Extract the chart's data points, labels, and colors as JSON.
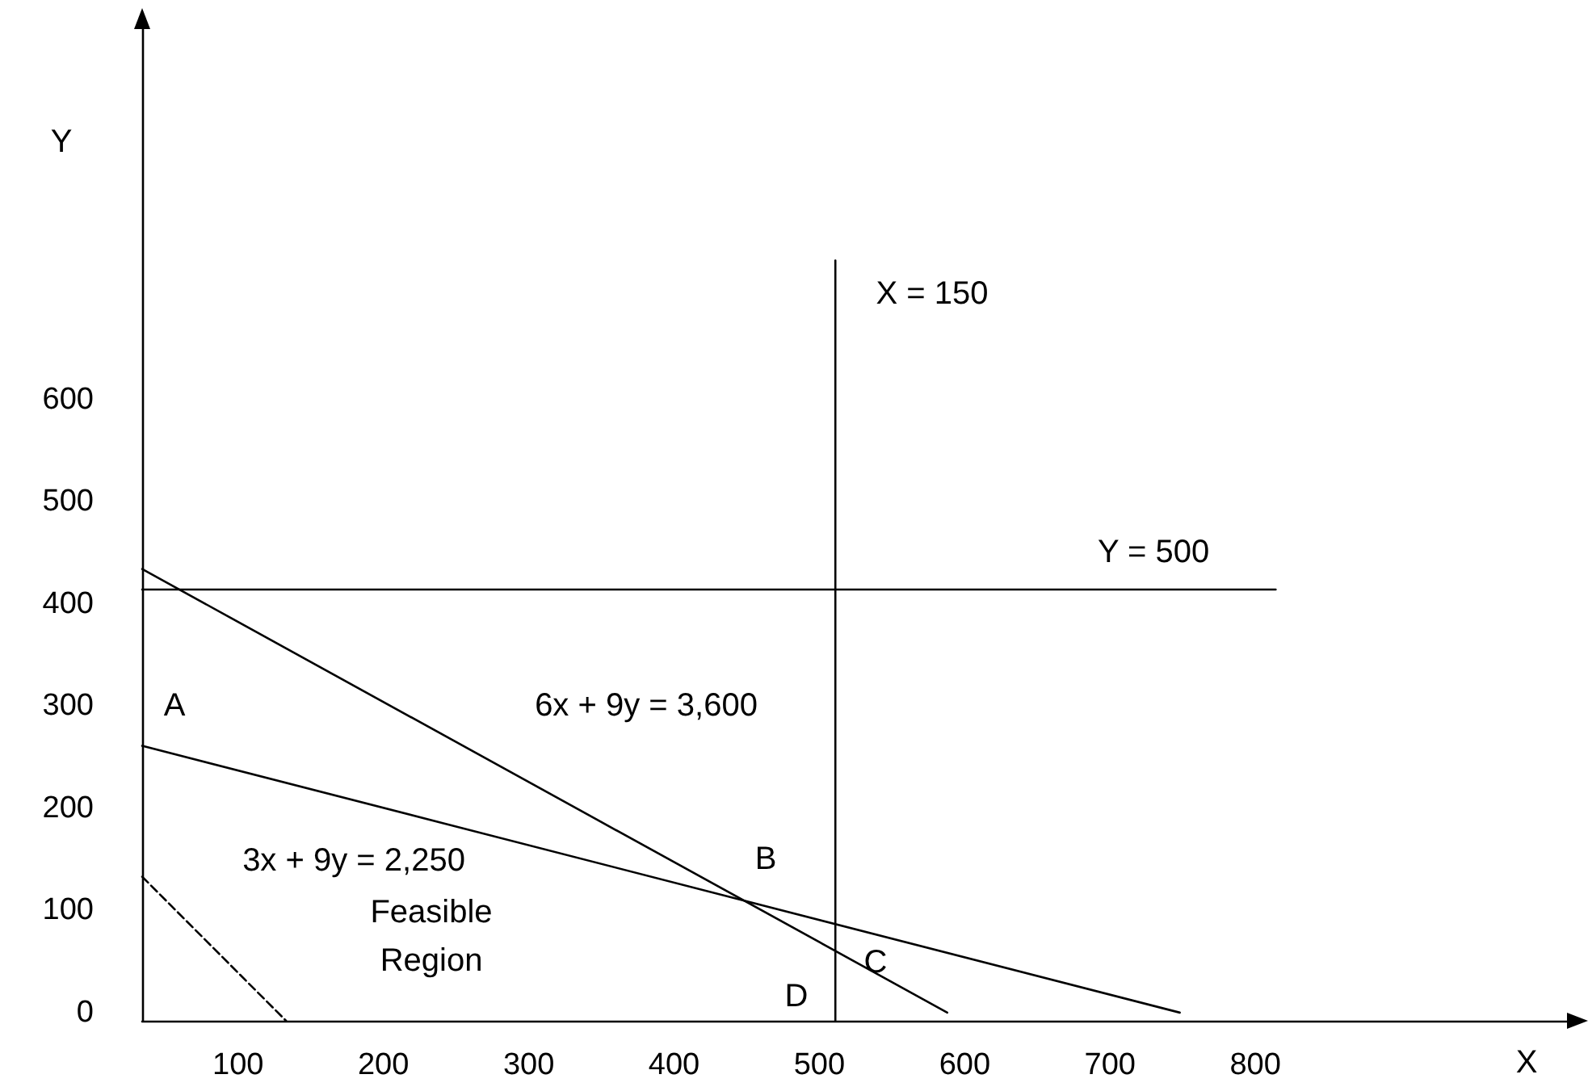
{
  "chart_data": {
    "type": "line",
    "xlabel": "X",
    "ylabel": "Y",
    "xlim": [
      34,
      1020
    ],
    "ylim": [
      -8,
      975
    ],
    "xticks": [
      100,
      200,
      300,
      400,
      500,
      600,
      700,
      800
    ],
    "yticks": [
      0,
      100,
      200,
      300,
      400,
      500,
      600
    ],
    "grid": false,
    "marker": "none",
    "series": [
      {
        "color": "#000000",
        "x": [
          34,
          588
        ],
        "values": [
          434,
          0
        ]
      },
      {
        "color": "#000000",
        "x": [
          34,
          748
        ],
        "values": [
          261,
          0
        ]
      },
      {
        "color": "#000000",
        "x": [
          34,
          814
        ],
        "values": [
          414,
          414
        ]
      },
      {
        "color": "#000000",
        "x": [
          511,
          511
        ],
        "values": [
          736,
          -8
        ]
      },
      {
        "color": "#000000",
        "x": [
          34,
          133
        ],
        "values": [
          133,
          -8
        ],
        "line_style": "dashed"
      }
    ],
    "annotations": [
      "A",
      "B",
      "C",
      "D",
      "6x + 9y = 3,600",
      "3x + 9y = 2,250",
      "Feasible\nRegion",
      "Y = 500",
      "X = 150"
    ]
  }
}
